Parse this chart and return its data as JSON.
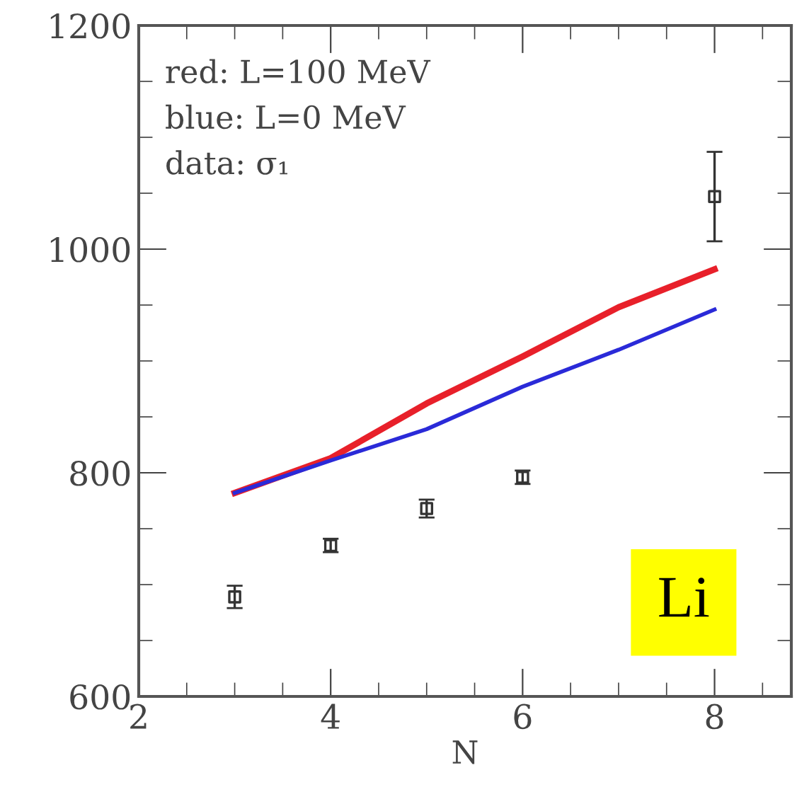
{
  "chart_data": {
    "type": "line",
    "xlabel": "N",
    "annotations": [
      "red: L=100 MeV",
      "blue: L=0 MeV",
      "data: σ₁",
      "Li"
    ],
    "series": [
      {
        "color": "#e8202a",
        "x": [
          3,
          4,
          5,
          6,
          7,
          8
        ],
        "values": [
          782,
          813,
          862,
          904,
          948,
          982
        ]
      },
      {
        "color": "#2a2ad8",
        "x": [
          3,
          4,
          5,
          6,
          7,
          8
        ],
        "values": [
          782,
          811,
          839,
          877,
          910,
          946
        ]
      },
      {
        "type": "scatter",
        "color": "#333333",
        "x": [
          3,
          4,
          5,
          6,
          8
        ],
        "values": [
          689,
          735,
          768,
          796,
          1047
        ],
        "errors": [
          10,
          6,
          8,
          6,
          40
        ],
        "marker": "square"
      }
    ],
    "xlim": [
      2,
      8.8
    ],
    "ylim": [
      600,
      1200
    ],
    "xticks": [
      2,
      4,
      6,
      8
    ],
    "yticks": [
      600,
      800,
      1000,
      1200
    ],
    "grid": false,
    "legend": false
  }
}
